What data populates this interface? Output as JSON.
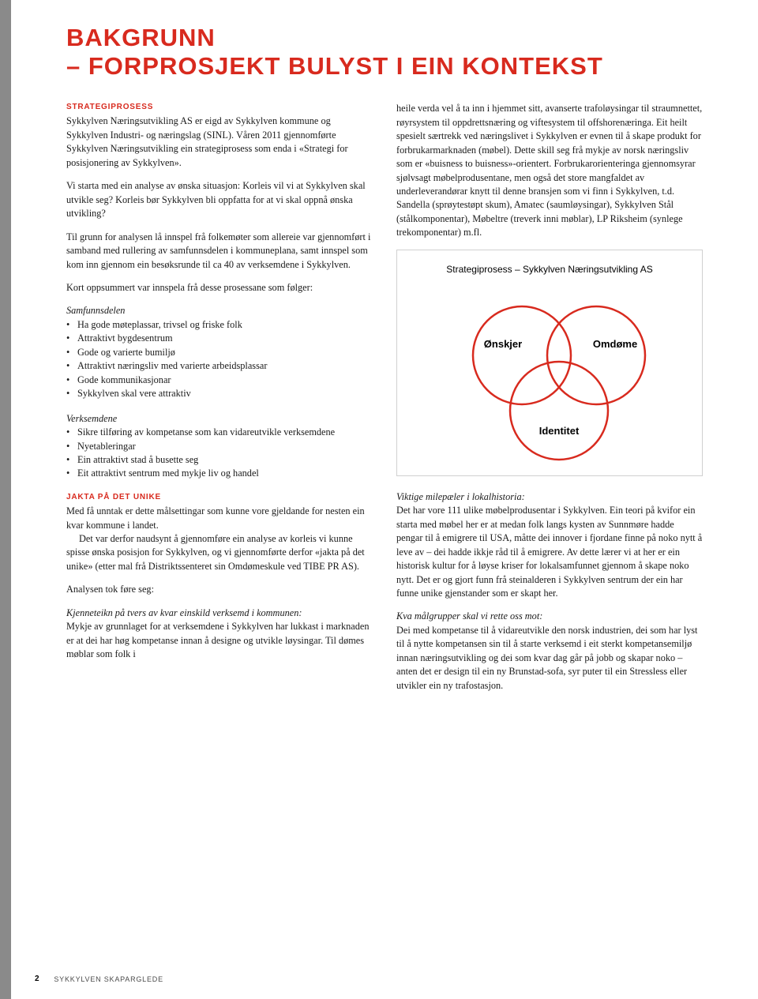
{
  "title": {
    "line1": "BAKGRUNN",
    "line2": "– FORPROSJEKT BULYST I EIN KONTEKST"
  },
  "left_column": {
    "subhead1": "STRATEGIPROSESS",
    "p1": "Sykkylven Næringsutvikling AS er eigd av Sykkylven kommune og Sykkylven Industri- og næringslag (SINL). Våren 2011 gjennomførte Sykkylven Næringsutvikling ein strategiprosess som enda i «Strategi for posisjonering av Sykkylven».",
    "p2": "Vi starta med ein analyse av ønska situasjon: Korleis vil vi at Sykkylven skal utvikle seg? Korleis bør Sykkylven bli oppfatta for at vi skal oppnå ønska utvikling?",
    "p3": "Til grunn for analysen lå innspel frå folkemøter som allereie var gjennomført i samband med rullering av samfunnsdelen i kommuneplana, samt innspel som kom inn gjennom ein besøksrunde til ca 40 av verksemdene i Sykkylven.",
    "p4": "Kort oppsummert var innspela frå desse prosessane som følger:",
    "samf_head": "Samfunnsdelen",
    "samf_list": [
      "Ha gode møteplassar, trivsel og friske folk",
      "Attraktivt bygdesentrum",
      "Gode og varierte bumiljø",
      "Attraktivt næringsliv med varierte arbeidsplassar",
      "Gode kommunikasjonar",
      "Sykkylven skal vere attraktiv"
    ],
    "verk_head": "Verksemdene",
    "verk_list": [
      "Sikre tilføring av kompetanse som kan vidareutvikle verksemdene",
      "Nyetableringar",
      "Ein attraktivt stad å busette seg",
      "Eit attraktivt sentrum med mykje liv og handel"
    ],
    "subhead2": "JAKTA PÅ DET UNIKE",
    "p5": "Med få unntak er dette målsettingar som kunne vore gjeldande for nesten ein kvar kommune i landet.",
    "p5b": "Det var derfor naudsynt å gjennomføre ein analyse av korleis vi kunne spisse ønska posisjon for Sykkylven, og vi gjennomførte derfor «jakta på det unike» (etter mal frå Distriktssenteret sin Omdømeskule ved TIBE PR AS).",
    "p6": "Analysen tok føre seg:",
    "p7_head": "Kjenneteikn på tvers av kvar einskild verksemd i kommunen:",
    "p7": "Mykje av grunnlaget for at verksemdene i Sykkylven har lukkast i marknaden er at dei har høg kompetanse innan å designe og utvikle løysingar. Til dømes møblar som folk i"
  },
  "right_column": {
    "p1": "heile verda vel å ta inn i hjemmet sitt, avanserte trafoløysingar til straumnettet, røyrsystem til oppdrettsnæring og viftesystem til offshorenæringa. Eit heilt spesielt særtrekk ved næringslivet i Sykkylven er evnen til å skape produkt for forbrukarmarknaden (møbel). Dette skill seg frå mykje av norsk næringsliv som er «buisness to buisness»-orientert. Forbrukarorienteringa gjennomsyrar sjølvsagt møbelprodusentane, men også det store mangfaldet av underleverandørar knytt til denne bransjen som vi finn i Sykkylven, t.d. Sandella (sprøytestøpt skum), Amatec (saumløysingar), Sykkylven Stål (stålkomponentar), Møbeltre (treverk inni møblar), LP Riksheim (synlege trekomponentar) m.fl.",
    "diagram": {
      "title": "Strategiprosess – Sykkylven Næringsutvikling AS",
      "circle1": "Ønskjer",
      "circle2": "Omdøme",
      "circle3": "Identitet",
      "stroke": "#d82a1e",
      "stroke_width": 2.5,
      "radius": 62,
      "cx1": 148,
      "cy1": 90,
      "cx2": 242,
      "cy2": 90,
      "cx3": 195,
      "cy3": 160
    },
    "p2_head": "Viktige milepæler i lokalhistoria:",
    "p2": "Det har vore 111 ulike møbelprodusentar i Sykkylven. Ein teori på kvifor ein starta med møbel her er at medan folk langs kysten av Sunnmøre hadde pengar til å emigrere til USA, måtte dei innover i fjordane finne på noko nytt å leve av – dei hadde ikkje råd til å emigrere. Av dette lærer vi at her er ein historisk kultur for å løyse kriser for lokalsamfunnet gjennom å skape noko nytt. Det er og gjort funn frå steinalderen i Sykkylven sentrum der ein har funne unike gjenstander som er skapt her.",
    "p3_head": "Kva målgrupper skal vi rette oss mot:",
    "p3": "Dei med kompetanse til å vidareutvikle den norsk industrien, dei som har lyst til å nytte kompetansen sin til å starte verksemd i eit sterkt kompetansemiljø innan næringsutvikling og dei som kvar dag går på jobb og skapar noko – anten det er design til ein ny Brunstad-sofa, syr puter til ein Stressless eller utvikler ein ny trafostasjon."
  },
  "footer": {
    "page": "2",
    "label": "SYKKYLVEN SKAPARGLEDE"
  }
}
